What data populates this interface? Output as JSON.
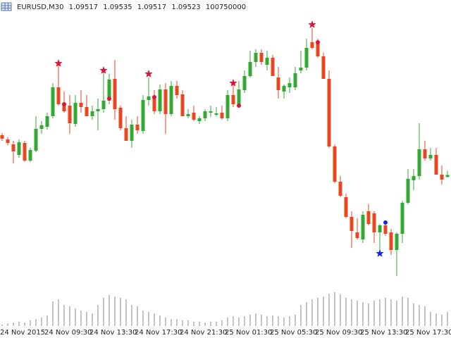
{
  "chart_data": {
    "type": "candlestick",
    "symbol": "EURUSD,M30",
    "categories": [
      "24 Nov 2015",
      null,
      null,
      null,
      null,
      null,
      null,
      null,
      "24 Nov 09:30",
      null,
      null,
      null,
      null,
      null,
      null,
      null,
      "24 Nov 13:30",
      null,
      null,
      null,
      null,
      null,
      null,
      null,
      "24 Nov 17:30",
      null,
      null,
      null,
      null,
      null,
      null,
      null,
      "24 Nov 21:30",
      null,
      null,
      null,
      null,
      null,
      null,
      null,
      "25 Nov 01:30",
      null,
      null,
      null,
      null,
      null,
      null,
      null,
      "25 Nov 05:30",
      null,
      null,
      null,
      null,
      null,
      null,
      null,
      "25 Nov 09:30",
      null,
      null,
      null,
      null,
      null,
      null,
      null,
      "25 Nov 13:30",
      null,
      null,
      null,
      null,
      null,
      null,
      null,
      "25 Nov 17:30",
      null,
      null,
      null,
      null,
      null,
      null,
      null
    ],
    "open": [
      1.09636,
      1.09624,
      1.0961,
      1.0958,
      1.09614,
      1.09564,
      1.09592,
      1.09654,
      1.0966,
      1.0969,
      1.09772,
      1.09728,
      1.0972,
      1.09668,
      1.09728,
      1.09716,
      1.0969,
      1.09704,
      1.0971,
      1.09734,
      1.09796,
      1.09714,
      1.09656,
      1.0962,
      1.09666,
      1.09648,
      1.09736,
      1.09748,
      1.09704,
      1.09766,
      1.09696,
      1.09776,
      1.09752,
      1.0969,
      1.097,
      1.09676,
      1.09684,
      1.097,
      1.09694,
      1.097,
      1.09684,
      1.0975,
      1.09724,
      1.09764,
      1.09804,
      1.09844,
      1.0987,
      1.09836,
      1.09856,
      1.098,
      1.0976,
      1.09772,
      1.09772,
      1.0982,
      1.09828,
      1.099,
      1.099,
      1.0986,
      1.09796,
      1.09604,
      1.09504,
      1.0946,
      1.09404,
      1.0936,
      1.0934,
      1.0942,
      1.09414,
      1.0936,
      1.0938,
      1.0936,
      1.0931,
      1.09356,
      1.09444,
      1.09508,
      1.0952,
      1.09596,
      1.0957,
      1.0958,
      1.09524,
      1.09517
    ],
    "high": [
      1.09642,
      1.0963,
      1.0962,
      1.09624,
      1.0962,
      1.096,
      1.0969,
      1.09676,
      1.097,
      1.09784,
      1.09844,
      1.0976,
      1.0975,
      1.0975,
      1.09764,
      1.0975,
      1.0972,
      1.0974,
      1.0982,
      1.0981,
      1.0985,
      1.0972,
      1.0969,
      1.0968,
      1.0969,
      1.0975,
      1.098,
      1.09764,
      1.0978,
      1.09784,
      1.0979,
      1.0979,
      1.09764,
      1.0971,
      1.0972,
      1.0969,
      1.0971,
      1.0972,
      1.09716,
      1.0972,
      1.09764,
      1.09784,
      1.0979,
      1.0982,
      1.09876,
      1.0988,
      1.0988,
      1.09876,
      1.09864,
      1.0983,
      1.0978,
      1.098,
      1.0983,
      1.09876,
      1.0991,
      1.0994,
      1.0991,
      1.0987,
      1.0982,
      1.0961,
      1.0952,
      1.0947,
      1.0942,
      1.094,
      1.0942,
      1.0944,
      1.0942,
      1.09384,
      1.0939,
      1.0937,
      1.0936,
      1.0945,
      1.0954,
      1.0954,
      1.0967,
      1.0962,
      1.096,
      1.096,
      1.0955,
      1.09535
    ],
    "low": [
      1.0962,
      1.09608,
      1.09556,
      1.09572,
      1.0956,
      1.0956,
      1.09588,
      1.0964,
      1.09652,
      1.09684,
      1.0972,
      1.097,
      1.0964,
      1.0966,
      1.097,
      1.0969,
      1.0968,
      1.0965,
      1.097,
      1.09724,
      1.0968,
      1.0965,
      1.0962,
      1.096,
      1.0964,
      1.0964,
      1.0972,
      1.09696,
      1.09696,
      1.0964,
      1.0969,
      1.0974,
      1.0969,
      1.09684,
      1.09676,
      1.09668,
      1.09676,
      1.09688,
      1.0969,
      1.0968,
      1.09676,
      1.09716,
      1.09716,
      1.09756,
      1.098,
      1.0983,
      1.09836,
      1.0982,
      1.09804,
      1.0974,
      1.0974,
      1.09756,
      1.09764,
      1.09812,
      1.0982,
      1.0988,
      1.09856,
      1.09796,
      1.096,
      1.095,
      1.0946,
      1.094,
      1.09316,
      1.0934,
      1.0933,
      1.0938,
      1.0933,
      1.0931,
      1.0935,
      1.09296,
      1.09236,
      1.0933,
      1.0944,
      1.0948,
      1.0951,
      1.09564,
      1.09564,
      1.09524,
      1.09496,
      1.09517
    ],
    "close": [
      1.09626,
      1.09614,
      1.0959,
      1.09616,
      1.09564,
      1.09594,
      1.09654,
      1.09664,
      1.0969,
      1.09772,
      1.09724,
      1.09704,
      1.0967,
      1.09728,
      1.09716,
      1.0969,
      1.09704,
      1.0971,
      1.09734,
      1.09794,
      1.0971,
      1.09656,
      1.0962,
      1.09666,
      1.0965,
      1.09736,
      1.09746,
      1.09704,
      1.09766,
      1.09696,
      1.09776,
      1.0975,
      1.0969,
      1.09696,
      1.0968,
      1.09684,
      1.09704,
      1.09704,
      1.09698,
      1.09684,
      1.0975,
      1.09724,
      1.09766,
      1.09804,
      1.09844,
      1.0987,
      1.09844,
      1.09856,
      1.09804,
      1.09764,
      1.09776,
      1.09784,
      1.09812,
      1.09828,
      1.09884,
      1.09884,
      1.0986,
      1.09796,
      1.09604,
      1.09504,
      1.09464,
      1.09404,
      1.09364,
      1.09344,
      1.0941,
      1.09384,
      1.0936,
      1.0938,
      1.09356,
      1.0931,
      1.09356,
      1.09444,
      1.09512,
      1.0952,
      1.09596,
      1.0957,
      1.0958,
      1.09524,
      1.0951,
      1.09523
    ],
    "volume": [
      10000000,
      20000000,
      25000000,
      30000000,
      25000000,
      40000000,
      50000000,
      60000000,
      75000000,
      175000000,
      190000000,
      150000000,
      140000000,
      125000000,
      110000000,
      100000000,
      90000000,
      150000000,
      200000000,
      220000000,
      210000000,
      200000000,
      190000000,
      150000000,
      140000000,
      110000000,
      100000000,
      90000000,
      75000000,
      60000000,
      50000000,
      50000000,
      40000000,
      40000000,
      30000000,
      30000000,
      25000000,
      30000000,
      30000000,
      40000000,
      60000000,
      70000000,
      60000000,
      70000000,
      80000000,
      90000000,
      80000000,
      70000000,
      75000000,
      70000000,
      60000000,
      70000000,
      80000000,
      150000000,
      170000000,
      190000000,
      200000000,
      210000000,
      230000000,
      240000000,
      225000000,
      200000000,
      190000000,
      180000000,
      170000000,
      160000000,
      180000000,
      190000000,
      200000000,
      190000000,
      180000000,
      210000000,
      200000000,
      160000000,
      150000000,
      140000000,
      100000000,
      90000000,
      80000000,
      100750000
    ],
    "sell_stars": [
      null,
      null,
      null,
      null,
      null,
      null,
      null,
      null,
      null,
      null,
      1.0984,
      null,
      null,
      null,
      null,
      null,
      null,
      null,
      1.0982,
      null,
      null,
      null,
      null,
      null,
      null,
      null,
      1.0981,
      null,
      null,
      null,
      null,
      null,
      null,
      null,
      null,
      null,
      null,
      null,
      null,
      null,
      null,
      1.09784,
      null,
      null,
      null,
      null,
      null,
      null,
      null,
      null,
      null,
      null,
      null,
      null,
      null,
      1.0995,
      null,
      null,
      null,
      null,
      null,
      null,
      null,
      null,
      null,
      null,
      null,
      null,
      null,
      null,
      null,
      null,
      null,
      null,
      null,
      null,
      null,
      null,
      null,
      null
    ],
    "buy_stars": [
      null,
      null,
      null,
      null,
      null,
      null,
      null,
      null,
      null,
      null,
      null,
      null,
      null,
      null,
      null,
      null,
      null,
      null,
      null,
      null,
      null,
      null,
      null,
      null,
      null,
      null,
      null,
      null,
      null,
      null,
      null,
      null,
      null,
      null,
      null,
      null,
      null,
      null,
      null,
      null,
      null,
      null,
      null,
      null,
      null,
      null,
      null,
      null,
      null,
      null,
      null,
      null,
      null,
      null,
      null,
      null,
      null,
      null,
      null,
      null,
      null,
      null,
      null,
      null,
      null,
      null,
      null,
      1.093,
      null,
      null,
      null,
      null,
      null,
      null,
      null,
      null,
      null,
      null,
      null,
      null
    ],
    "red_dots": [
      null,
      null,
      null,
      null,
      null,
      null,
      null,
      null,
      null,
      null,
      null,
      1.09724,
      null,
      null,
      null,
      null,
      null,
      null,
      null,
      1.0974,
      null,
      null,
      null,
      null,
      null,
      null,
      null,
      1.09744,
      null,
      null,
      null,
      null,
      null,
      null,
      null,
      null,
      null,
      null,
      null,
      null,
      null,
      null,
      1.0972,
      null,
      null,
      null,
      null,
      null,
      null,
      null,
      null,
      null,
      null,
      null,
      null,
      null,
      1.099,
      null,
      null,
      null,
      null,
      null,
      null,
      null,
      null,
      null,
      null,
      null,
      null,
      null,
      null,
      null,
      null,
      null,
      null,
      null,
      null,
      null,
      null,
      null
    ],
    "blue_dots": [
      null,
      null,
      null,
      null,
      null,
      null,
      null,
      null,
      null,
      null,
      null,
      null,
      null,
      null,
      null,
      null,
      null,
      null,
      null,
      null,
      null,
      null,
      null,
      null,
      null,
      null,
      null,
      null,
      null,
      null,
      null,
      null,
      null,
      null,
      null,
      null,
      null,
      null,
      null,
      null,
      null,
      null,
      null,
      null,
      null,
      null,
      null,
      null,
      null,
      null,
      null,
      null,
      null,
      null,
      null,
      null,
      null,
      null,
      null,
      null,
      null,
      null,
      null,
      null,
      null,
      null,
      null,
      null,
      1.09388,
      null,
      null,
      null,
      null,
      null,
      null,
      null,
      null,
      null,
      null,
      null
    ],
    "ylim": [
      1.0906,
      1.1002
    ],
    "volume_ylim": [
      0,
      250000000
    ],
    "up_color": "#33a833",
    "down_color": "#e8461e",
    "volume_color": "#8a8a8a",
    "sell_color": "#d9163c",
    "buy_color": "#1428d8"
  }
}
